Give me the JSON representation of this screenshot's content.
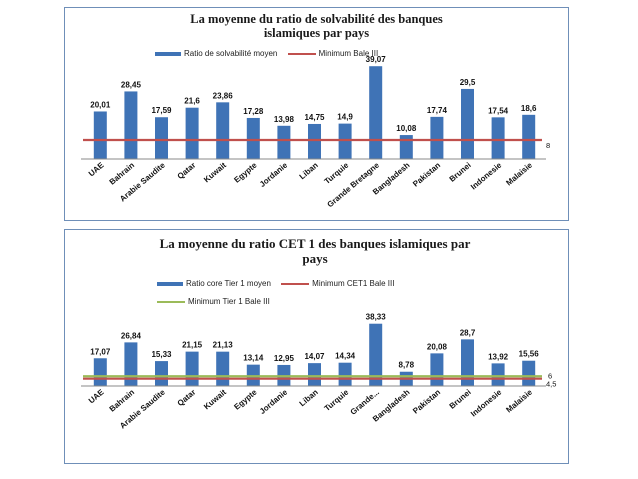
{
  "chart_data": [
    {
      "type": "bar",
      "title_line1": "La moyenne du ratio de solvabilité des banques",
      "title_line2": "islamiques par pays",
      "categories": [
        "UAE",
        "Bahrain",
        "Arabie Saudite",
        "Qatar",
        "Kuwait",
        "Egypte",
        "Jordanie",
        "Liban",
        "Turquie",
        "Grande Bretagne",
        "Bangladesh",
        "Pakistan",
        "Brunei",
        "Indonesie",
        "Malaisie"
      ],
      "series": [
        {
          "name": "Ratio de solvabilité moyen",
          "type": "bar",
          "color": "#3f73b6",
          "values": [
            20.01,
            28.45,
            17.59,
            21.6,
            23.86,
            17.28,
            13.98,
            14.75,
            14.9,
            39.07,
            10.08,
            17.74,
            29.5,
            17.54,
            18.6
          ],
          "labels": [
            "20,01",
            "28,45",
            "17,59",
            "21,6",
            "23,86",
            "17,28",
            "13,98",
            "14,75",
            "14,9",
            "39,07",
            "10,08",
            "17,74",
            "29,5",
            "17,54",
            "18,6"
          ]
        },
        {
          "name": "Minimum Bale III",
          "type": "line",
          "color": "#c0504d",
          "value": 8,
          "label": "8"
        }
      ],
      "ylim": [
        0,
        40
      ],
      "legend": "top"
    },
    {
      "type": "bar",
      "title_line1": "La moyenne du ratio CET 1 des banques islamiques par",
      "title_line2": "pays",
      "categories": [
        "UAE",
        "Bahrain",
        "Arabie Saudite",
        "Qatar",
        "Kuwait",
        "Egypte",
        "Jordanie",
        "Liban",
        "Turquie",
        "Grande...",
        "Bangladesh",
        "Pakistan",
        "Brunei",
        "Indonesie",
        "Malaisie"
      ],
      "series": [
        {
          "name": "Ratio core Tier 1 moyen",
          "type": "bar",
          "color": "#3f73b6",
          "values": [
            17.07,
            26.84,
            15.33,
            21.15,
            21.13,
            13.14,
            12.95,
            14.07,
            14.34,
            38.33,
            8.78,
            20.08,
            28.7,
            13.92,
            15.56
          ],
          "labels": [
            "17,07",
            "26,84",
            "15,33",
            "21,15",
            "21,13",
            "13,14",
            "12,95",
            "14,07",
            "14,34",
            "38,33",
            "8,78",
            "20,08",
            "28,7",
            "13,92",
            "15,56"
          ]
        },
        {
          "name": "Minimum CET1 Bale III",
          "type": "line",
          "color": "#c0504d",
          "value": 4.5,
          "label": "4,5"
        },
        {
          "name": "Minimum Tier 1 Bale III",
          "type": "line",
          "color": "#9bbb59",
          "value": 6,
          "label": "6"
        }
      ],
      "ylim": [
        0,
        40
      ],
      "legend": "top"
    }
  ]
}
